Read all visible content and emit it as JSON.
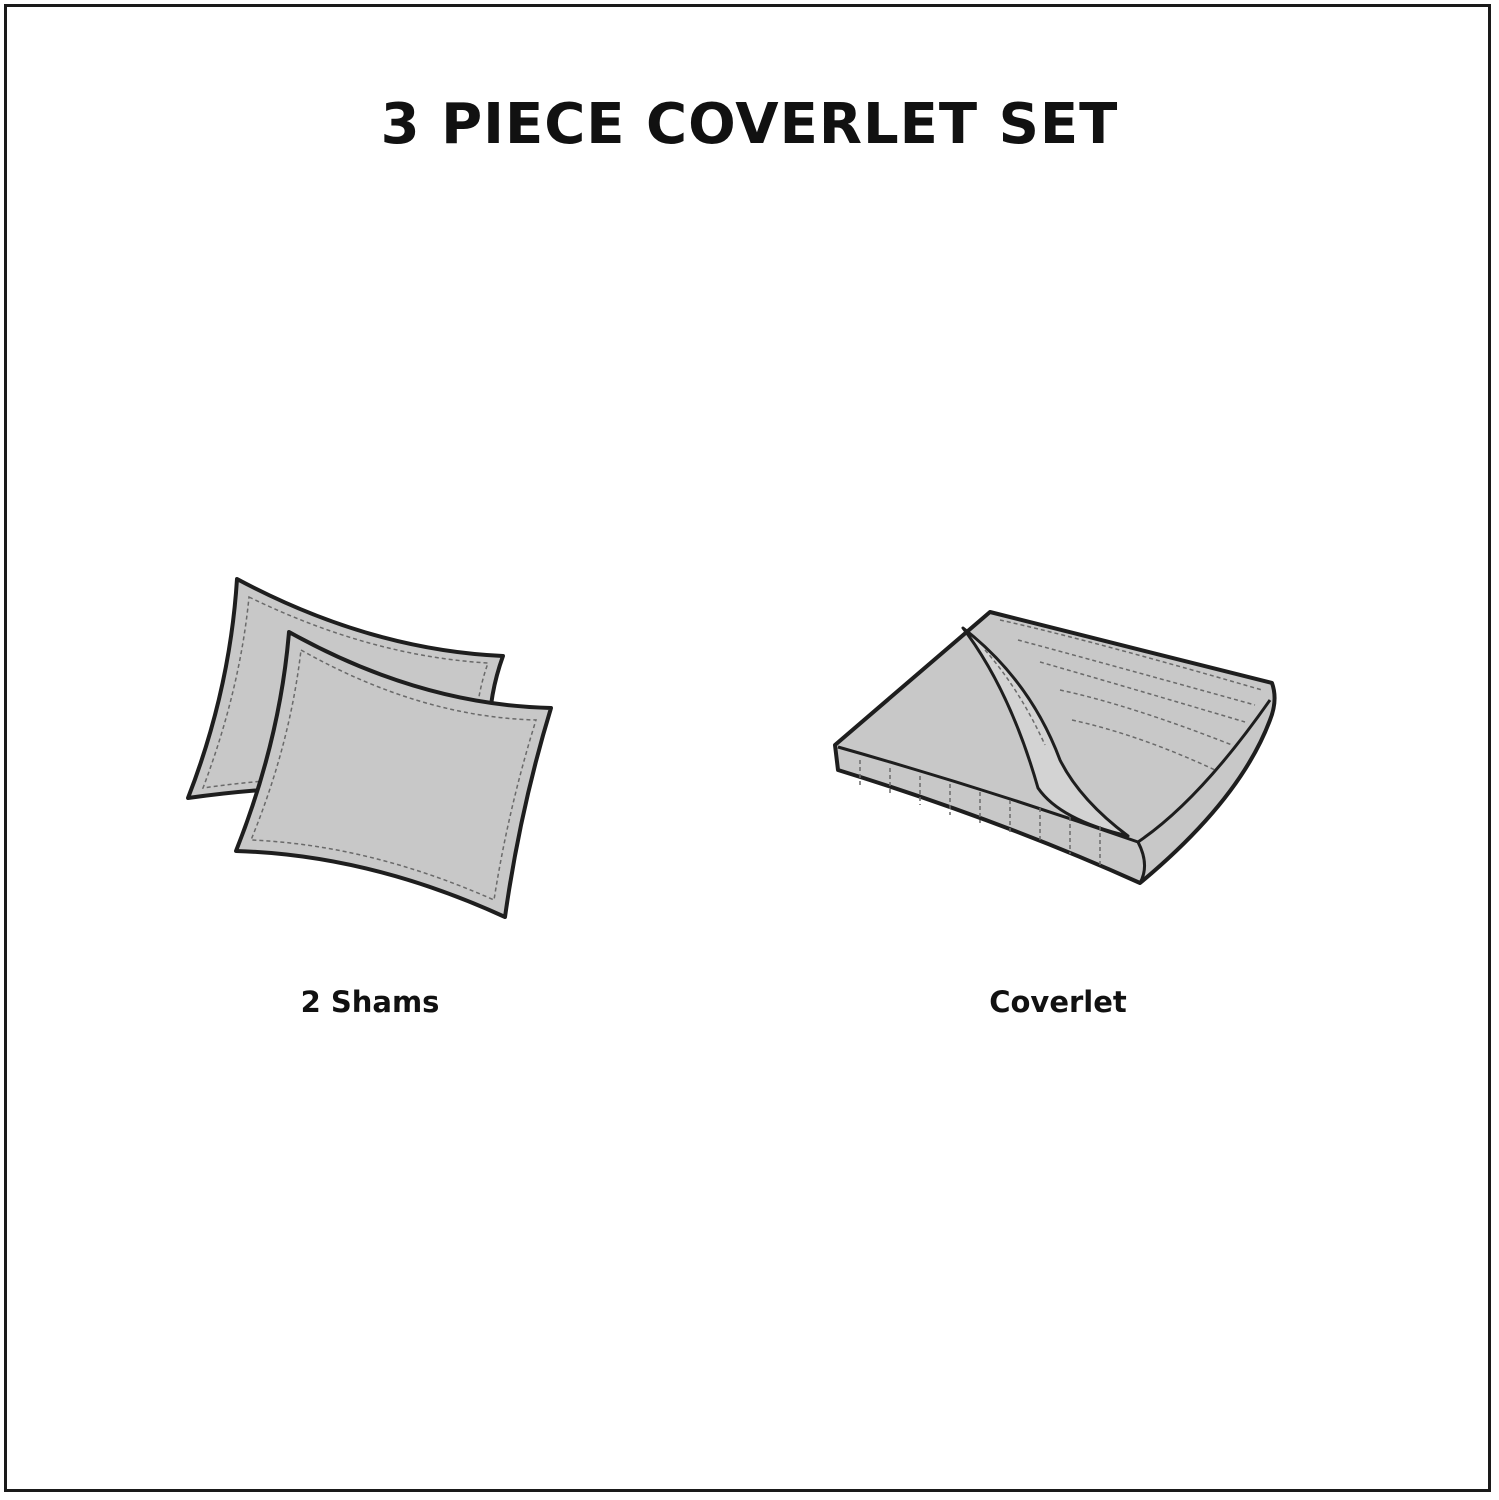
{
  "title": "3 PIECE COVERLET SET",
  "items": [
    {
      "label": "2 Shams",
      "icon": "shams-icon"
    },
    {
      "label": "Coverlet",
      "icon": "coverlet-icon"
    }
  ],
  "colors": {
    "fill": "#c8c8c8",
    "outline": "#1e1e1e",
    "stitch": "#6a6a6a",
    "background": "#ffffff"
  }
}
